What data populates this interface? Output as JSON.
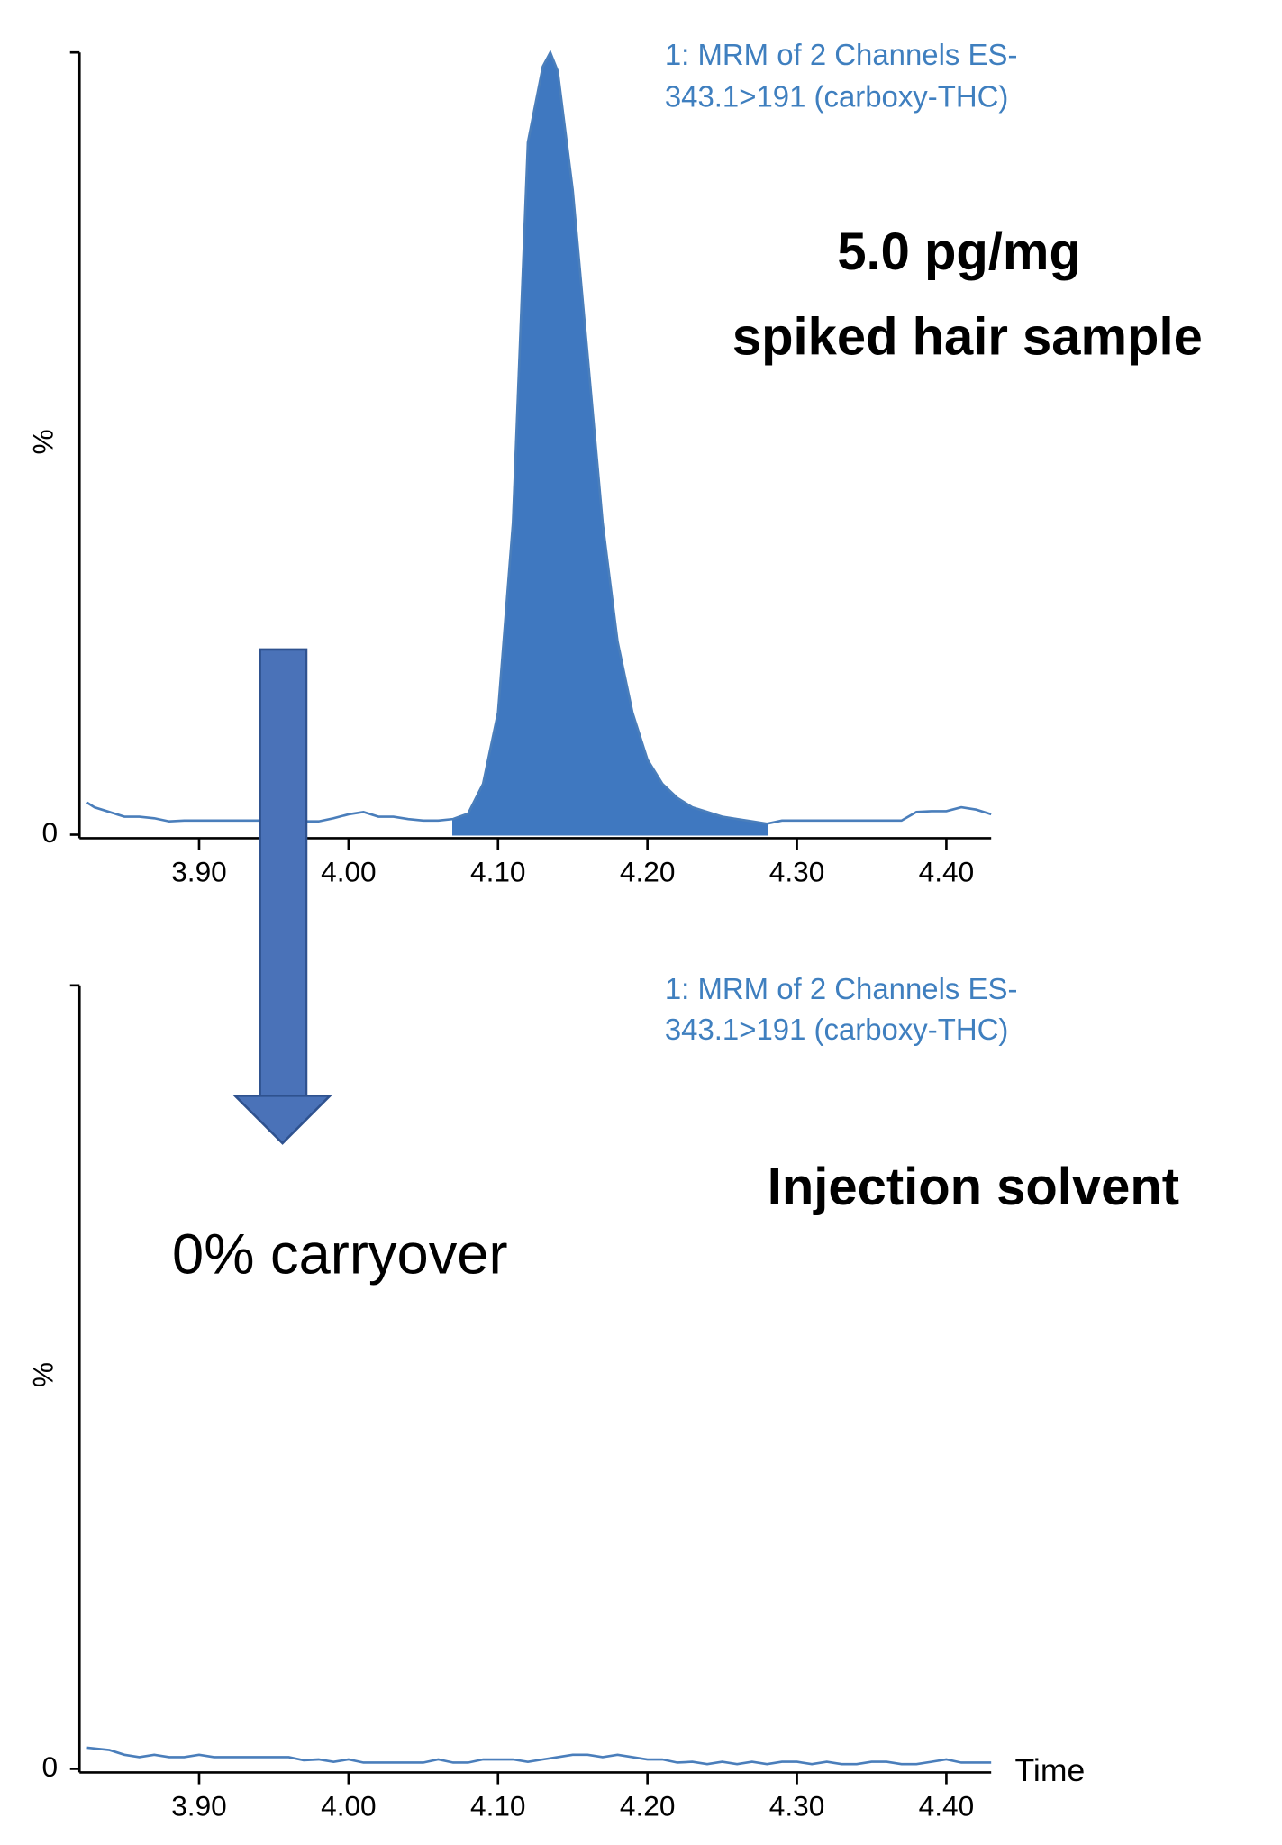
{
  "chart_data": [
    {
      "type": "area",
      "subtitle": [
        "1: MRM of 2 Channels ES-",
        "343.1>191 (carboxy-THC)"
      ],
      "label": [
        "5.0 pg/mg",
        "spiked hair sample"
      ],
      "y_label": "%",
      "color": "#4a7ebb",
      "fill_color": "#3f78c0",
      "shaded_xrange": [
        4.07,
        4.28
      ],
      "xlim": [
        3.82,
        4.43
      ],
      "ylim": [
        0,
        100
      ],
      "xticks": [
        {
          "value": 3.9,
          "label": "3.90"
        },
        {
          "value": 4.0,
          "label": "4.00"
        },
        {
          "value": 4.1,
          "label": "4.10"
        },
        {
          "value": 4.2,
          "label": "4.20"
        },
        {
          "value": 4.3,
          "label": "4.30"
        },
        {
          "value": 4.4,
          "label": "4.40"
        }
      ],
      "yticks": [
        0
      ],
      "x": [
        3.825,
        3.83,
        3.84,
        3.85,
        3.86,
        3.87,
        3.88,
        3.89,
        3.9,
        3.91,
        3.92,
        3.93,
        3.94,
        3.95,
        3.96,
        3.97,
        3.98,
        3.99,
        4.0,
        4.01,
        4.02,
        4.03,
        4.04,
        4.05,
        4.06,
        4.07,
        4.08,
        4.09,
        4.1,
        4.11,
        4.12,
        4.13,
        4.135,
        4.14,
        4.15,
        4.16,
        4.17,
        4.18,
        4.19,
        4.2,
        4.21,
        4.22,
        4.23,
        4.24,
        4.25,
        4.26,
        4.27,
        4.28,
        4.29,
        4.3,
        4.31,
        4.32,
        4.33,
        4.34,
        4.35,
        4.36,
        4.37,
        4.38,
        4.39,
        4.4,
        4.41,
        4.42,
        4.43
      ],
      "values": [
        4.1,
        3.5,
        2.9,
        2.3,
        2.3,
        2.1,
        1.7,
        1.8,
        1.8,
        1.8,
        1.8,
        1.8,
        1.8,
        1.8,
        1.8,
        1.7,
        1.7,
        2.1,
        2.6,
        2.9,
        2.3,
        2.3,
        2.0,
        1.8,
        1.8,
        2.0,
        2.7,
        6.5,
        15.6,
        39.9,
        88.5,
        98.2,
        100,
        97.6,
        82.4,
        61.2,
        39.9,
        24.7,
        15.6,
        9.6,
        6.5,
        4.7,
        3.5,
        2.9,
        2.3,
        2.0,
        1.7,
        1.4,
        1.8,
        1.8,
        1.8,
        1.8,
        1.8,
        1.8,
        1.8,
        1.8,
        1.8,
        2.9,
        3.0,
        3.0,
        3.5,
        3.2,
        2.6
      ]
    },
    {
      "type": "line",
      "subtitle": [
        "1: MRM of 2 Channels ES-",
        "343.1>191 (carboxy-THC)"
      ],
      "label": [
        "Injection solvent"
      ],
      "y_label": "%",
      "x_label": "Time",
      "color": "#4a7ebb",
      "xlim": [
        3.82,
        4.43
      ],
      "ylim": [
        0,
        100
      ],
      "xticks": [
        {
          "value": 3.9,
          "label": "3.90"
        },
        {
          "value": 4.0,
          "label": "4.00"
        },
        {
          "value": 4.1,
          "label": "4.10"
        },
        {
          "value": 4.2,
          "label": "4.20"
        },
        {
          "value": 4.3,
          "label": "4.30"
        },
        {
          "value": 4.4,
          "label": "4.40"
        }
      ],
      "yticks": [
        0
      ],
      "x": [
        3.825,
        3.83,
        3.84,
        3.85,
        3.86,
        3.87,
        3.88,
        3.89,
        3.9,
        3.91,
        3.92,
        3.93,
        3.94,
        3.95,
        3.96,
        3.97,
        3.98,
        3.99,
        4.0,
        4.01,
        4.02,
        4.03,
        4.04,
        4.05,
        4.06,
        4.07,
        4.08,
        4.09,
        4.1,
        4.11,
        4.12,
        4.13,
        4.14,
        4.15,
        4.16,
        4.17,
        4.18,
        4.19,
        4.2,
        4.21,
        4.22,
        4.23,
        4.24,
        4.25,
        4.26,
        4.27,
        4.28,
        4.29,
        4.3,
        4.31,
        4.32,
        4.33,
        4.34,
        4.35,
        4.36,
        4.37,
        4.38,
        4.39,
        4.4,
        4.41,
        4.42,
        4.43
      ],
      "values": [
        2.7,
        2.6,
        2.4,
        1.8,
        1.5,
        1.8,
        1.5,
        1.5,
        1.8,
        1.5,
        1.5,
        1.5,
        1.5,
        1.5,
        1.5,
        1.1,
        1.2,
        0.9,
        1.2,
        0.8,
        0.8,
        0.8,
        0.8,
        0.8,
        1.2,
        0.8,
        0.8,
        1.2,
        1.2,
        1.2,
        0.9,
        1.2,
        1.5,
        1.8,
        1.8,
        1.5,
        1.8,
        1.5,
        1.2,
        1.2,
        0.8,
        0.9,
        0.6,
        0.9,
        0.6,
        0.9,
        0.6,
        0.9,
        0.9,
        0.6,
        0.9,
        0.6,
        0.6,
        0.9,
        0.9,
        0.6,
        0.6,
        0.9,
        1.2,
        0.8,
        0.8,
        0.8
      ]
    }
  ],
  "annotation": "0% carryover"
}
